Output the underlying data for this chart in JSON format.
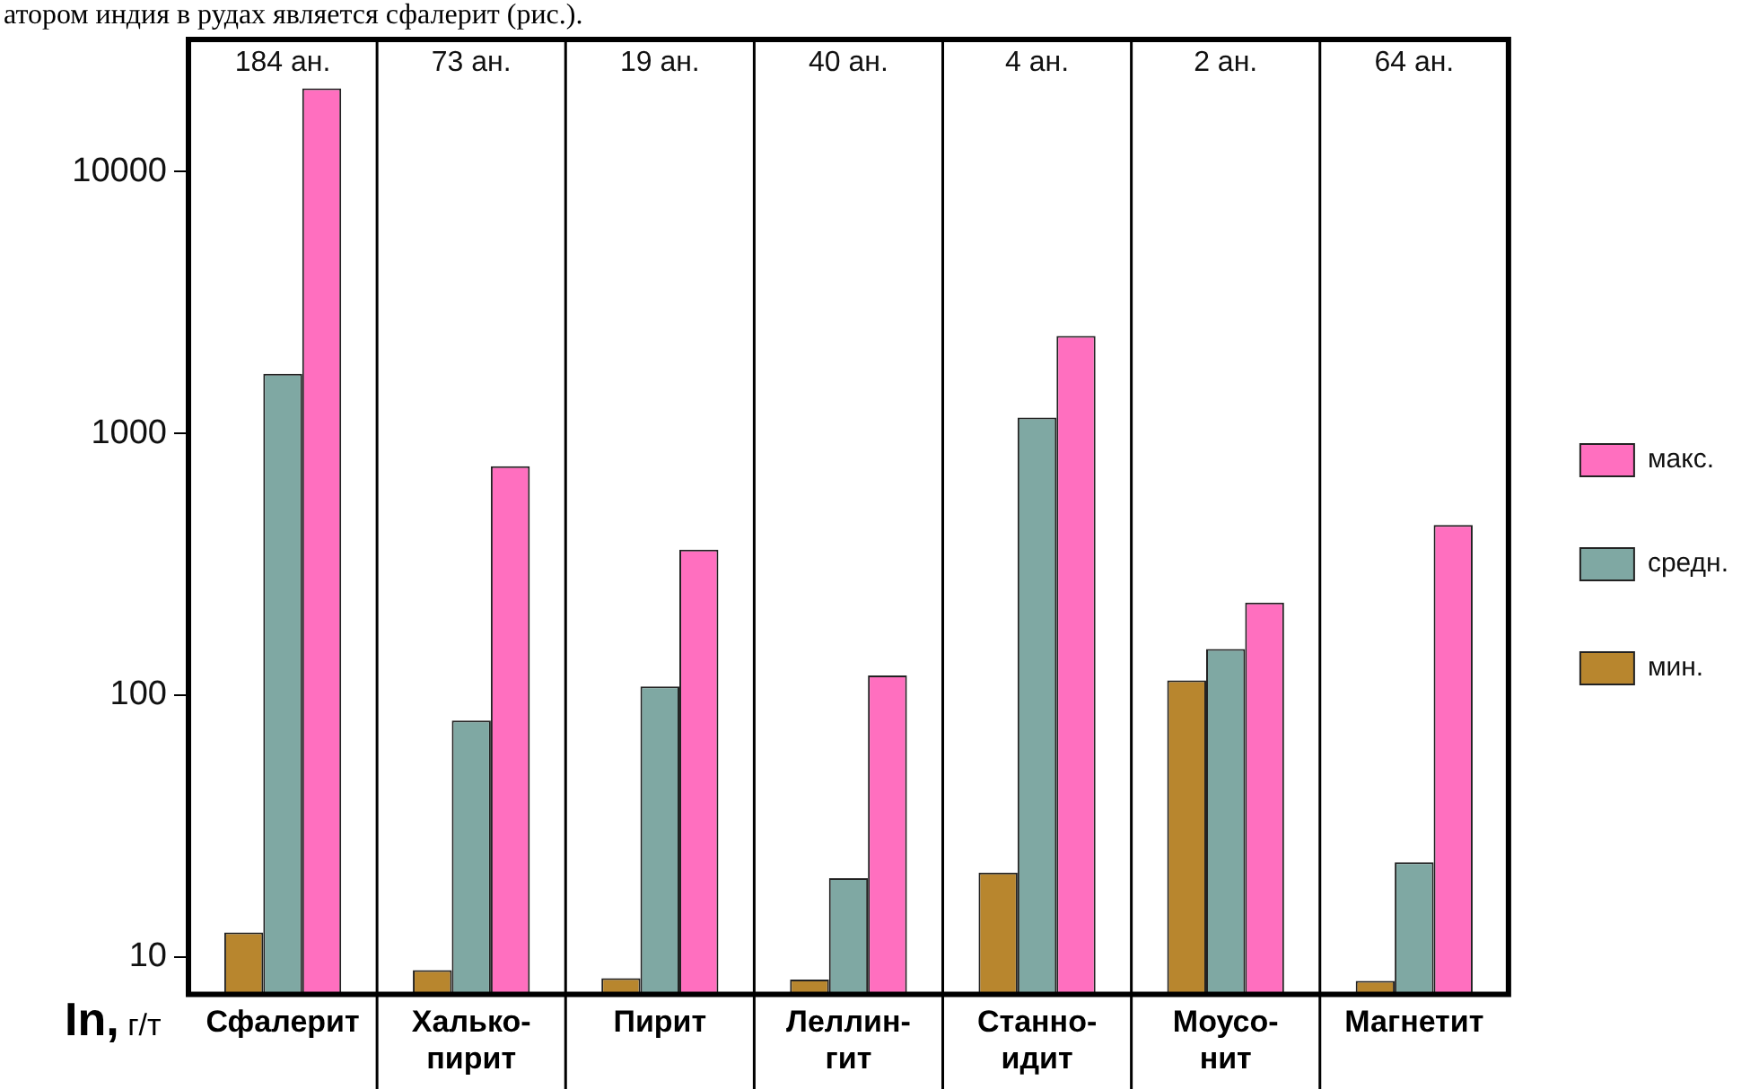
{
  "chart_data": {
    "type": "bar",
    "ylabel": "In, г/т",
    "categories": [
      "Сфалерит",
      "Халько-\nпирит",
      "Пирит",
      "Леллин-\nгит",
      "Станно-\nидит",
      "Моусо-\nнит",
      "Магнетит"
    ],
    "series": [
      {
        "name": "мин.",
        "color": "#b8862e",
        "values": [
          12.4,
          8.9,
          8.3,
          8.2,
          21,
          114,
          8.1
        ]
      },
      {
        "name": "средн.",
        "color": "#7fa8a3",
        "values": [
          1690,
          80,
          108,
          20,
          1150,
          150,
          23
        ]
      },
      {
        "name": "макс.",
        "color": "#ff6fbf",
        "values": [
          20800,
          750,
          360,
          119,
          2360,
          226,
          447
        ]
      }
    ],
    "log": true,
    "ylim": [
      7.2,
      32000
    ],
    "yticks": [
      10,
      100,
      1000,
      10000
    ],
    "grid": false,
    "legend": "right",
    "annotations": [
      "атором индия в рудах является сфалерит (рис.).",
      "184 ан.",
      "73 ан.",
      "19 ан.",
      "40 ан.",
      "4 ан.",
      "2 ан.",
      "64 ан."
    ]
  }
}
